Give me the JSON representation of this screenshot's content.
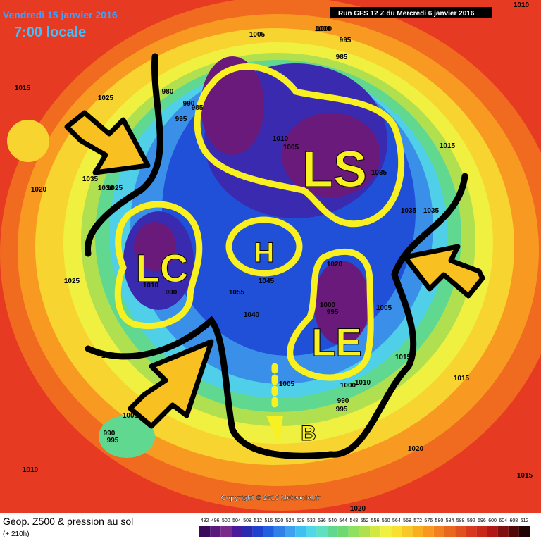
{
  "header": {
    "date": "Vendredi 15 janvier 2016",
    "time": "7:00 locale",
    "run": "Run GFS 12 Z du Mercredi 6 janvier 2016"
  },
  "footer": {
    "title": "Géop. Z500 & pression au sol",
    "lead": "(+ 210h)",
    "copyright": "Copyright © 2015 Meteociel.fr"
  },
  "annotations": [
    "LS",
    "LC",
    "H",
    "LE",
    "B"
  ],
  "pressure_labels": [
    "1010",
    "1005",
    "1000",
    "995",
    "985",
    "1015",
    "1025",
    "980",
    "990",
    "985",
    "995",
    "1010",
    "1005",
    "1035",
    "1030",
    "1025",
    "1020",
    "1000",
    "1035",
    "1035",
    "1035",
    "1015",
    "1025",
    "1010",
    "990",
    "1055",
    "1045",
    "1040",
    "1000",
    "995",
    "1005",
    "1020",
    "1015",
    "1005",
    "1000",
    "990",
    "995",
    "1010",
    "1005",
    "990",
    "995",
    "1015",
    "1020",
    "1015",
    "1010",
    "1015",
    "1020"
  ],
  "scale": {
    "labels": [
      "492",
      "496",
      "500",
      "504",
      "508",
      "512",
      "516",
      "520",
      "524",
      "528",
      "532",
      "536",
      "540",
      "544",
      "548",
      "552",
      "556",
      "560",
      "564",
      "568",
      "572",
      "576",
      "580",
      "584",
      "588",
      "592",
      "596",
      "600",
      "604",
      "608",
      "612"
    ],
    "colors": [
      "#3a0a5a",
      "#5a1a7a",
      "#7a2a8a",
      "#4a1a9a",
      "#2a2ab0",
      "#2040d0",
      "#2060e0",
      "#3080e8",
      "#40a0f0",
      "#40c0f0",
      "#50d8e8",
      "#60e0c0",
      "#60d890",
      "#70d870",
      "#90e060",
      "#b0e050",
      "#d0e840",
      "#f0f040",
      "#f8e030",
      "#f8c828",
      "#f8b020",
      "#f89820",
      "#f08020",
      "#e86820",
      "#e05020",
      "#d83820",
      "#c82818",
      "#b01818",
      "#801010",
      "#500808",
      "#200404"
    ]
  }
}
